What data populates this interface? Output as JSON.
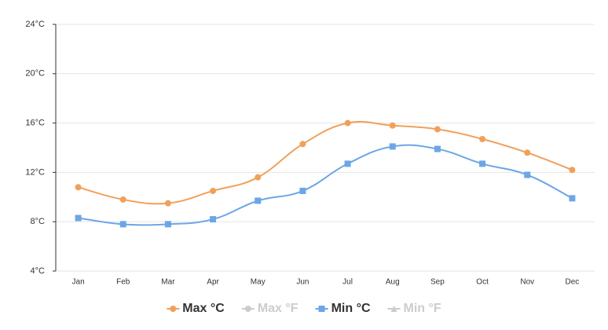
{
  "chart_data": {
    "type": "line",
    "categories": [
      "Jan",
      "Feb",
      "Mar",
      "Apr",
      "May",
      "Jun",
      "Jul",
      "Aug",
      "Sep",
      "Oct",
      "Nov",
      "Dec"
    ],
    "series": [
      {
        "name": "Max °C",
        "color": "#f0a05a",
        "marker": "circle",
        "visible": true,
        "values": [
          10.8,
          9.8,
          9.5,
          10.5,
          11.6,
          14.3,
          16.0,
          15.8,
          15.5,
          14.7,
          13.6,
          12.2
        ]
      },
      {
        "name": "Max °F",
        "color": "#cccccc",
        "marker": "circle",
        "visible": false,
        "values": [
          null,
          null,
          null,
          null,
          null,
          null,
          null,
          null,
          null,
          null,
          null,
          null
        ]
      },
      {
        "name": "Min °C",
        "color": "#6ca6e6",
        "marker": "square",
        "visible": true,
        "values": [
          8.3,
          7.8,
          7.8,
          8.2,
          9.7,
          10.5,
          12.7,
          14.1,
          13.9,
          12.7,
          11.8,
          9.9
        ]
      },
      {
        "name": "Min °F",
        "color": "#cccccc",
        "marker": "triangle",
        "visible": false,
        "values": [
          null,
          null,
          null,
          null,
          null,
          null,
          null,
          null,
          null,
          null,
          null,
          null
        ]
      }
    ],
    "ylim": [
      4,
      24
    ],
    "yticks": [
      {
        "value": 4,
        "label": "4°C"
      },
      {
        "value": 8,
        "label": "8°C"
      },
      {
        "value": 12,
        "label": "12°C"
      },
      {
        "value": 16,
        "label": "16°C"
      },
      {
        "value": 20,
        "label": "20°C"
      },
      {
        "value": 24,
        "label": "24°C"
      }
    ],
    "grid": true,
    "legend": "bottom"
  }
}
